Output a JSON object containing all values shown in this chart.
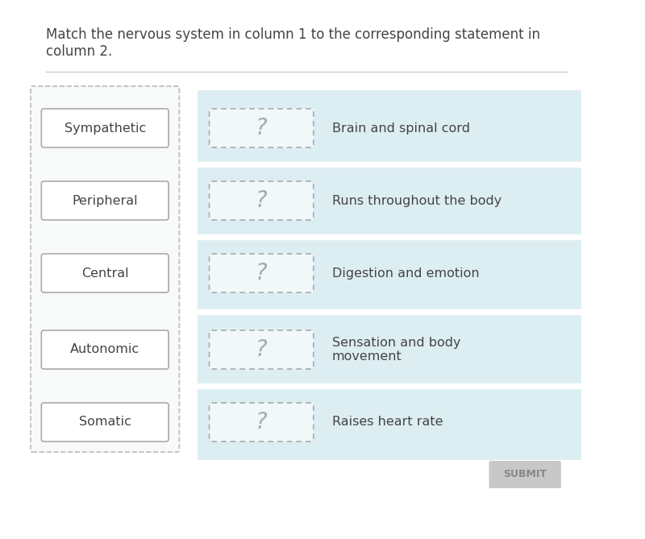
{
  "title": "Match the nervous system in column 1 to the corresponding statement in\ncolumn 2.",
  "title_fontsize": 12,
  "bg_color": "#ffffff",
  "col1_items": [
    "Sympathetic",
    "Peripheral",
    "Central",
    "Autonomic",
    "Somatic"
  ],
  "col2_items": [
    "Brain and spinal cord",
    "Runs throughout the body",
    "Digestion and emotion",
    "Sensation and body\nmovement",
    "Raises heart rate"
  ],
  "col1_box_color": "#ffffff",
  "col1_box_edge": "#aaaaaa",
  "col1_outer_dash_color": "#bbbbbb",
  "col2_bg_color": "#ddeef2",
  "col2_q_box_color": "#ffffff",
  "col2_q_box_edge": "#aaaaaa",
  "question_mark_color": "#aaaaaa",
  "text_color": "#444444",
  "submit_bg": "#c8c8c8",
  "submit_text": "SUBMIT",
  "submit_text_color": "#888888",
  "separator_color": "#cccccc"
}
